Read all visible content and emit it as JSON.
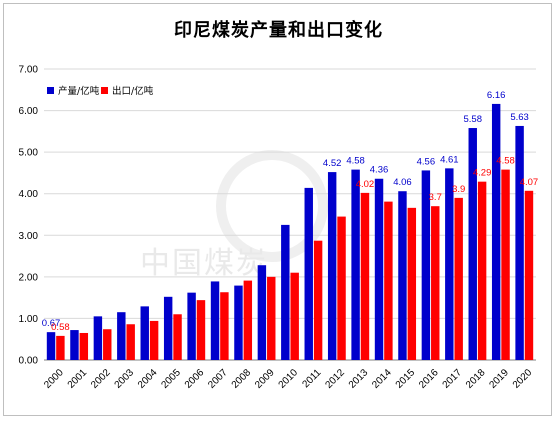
{
  "watermark": "中国煤炭",
  "chart_data": {
    "type": "bar",
    "title": "印尼煤炭产量和出口变化",
    "categories": [
      "2000",
      "2001",
      "2002",
      "2003",
      "2004",
      "2005",
      "2006",
      "2007",
      "2008",
      "2009",
      "2010",
      "2011",
      "2012",
      "2013",
      "2014",
      "2015",
      "2016",
      "2017",
      "2018",
      "2019",
      "2020"
    ],
    "series": [
      {
        "name": "产量/亿吨",
        "color": "#0000cc",
        "values": [
          0.67,
          0.72,
          1.05,
          1.15,
          1.29,
          1.52,
          1.62,
          1.89,
          1.79,
          2.28,
          3.25,
          4.14,
          4.52,
          4.58,
          4.36,
          4.06,
          4.56,
          4.61,
          5.58,
          6.16,
          5.63
        ],
        "labels": [
          "0.67",
          "",
          "",
          "",
          "",
          "",
          "",
          "",
          "",
          "",
          "",
          "",
          "4.52",
          "4.58",
          "4.36",
          "4.06",
          "4.56",
          "4.61",
          "5.58",
          "6.16",
          "5.63"
        ]
      },
      {
        "name": "出口/亿吨",
        "color": "#ff0000",
        "values": [
          0.58,
          0.65,
          0.74,
          0.86,
          0.94,
          1.1,
          1.44,
          1.63,
          1.91,
          2.0,
          2.1,
          2.87,
          3.45,
          4.02,
          3.81,
          3.66,
          3.7,
          3.9,
          4.29,
          4.58,
          4.07
        ],
        "labels": [
          "0.58",
          "",
          "",
          "",
          "",
          "",
          "",
          "",
          "",
          "",
          "",
          "",
          "",
          "4.02",
          "",
          "",
          "3.7",
          "3.9",
          "4.29",
          "4.58",
          "4.07"
        ]
      }
    ],
    "yticks": [
      "0.00",
      "1.00",
      "2.00",
      "3.00",
      "4.00",
      "5.00",
      "6.00",
      "7.00"
    ],
    "ylim": [
      0,
      7
    ],
    "grid": true,
    "legend": "top-left"
  }
}
